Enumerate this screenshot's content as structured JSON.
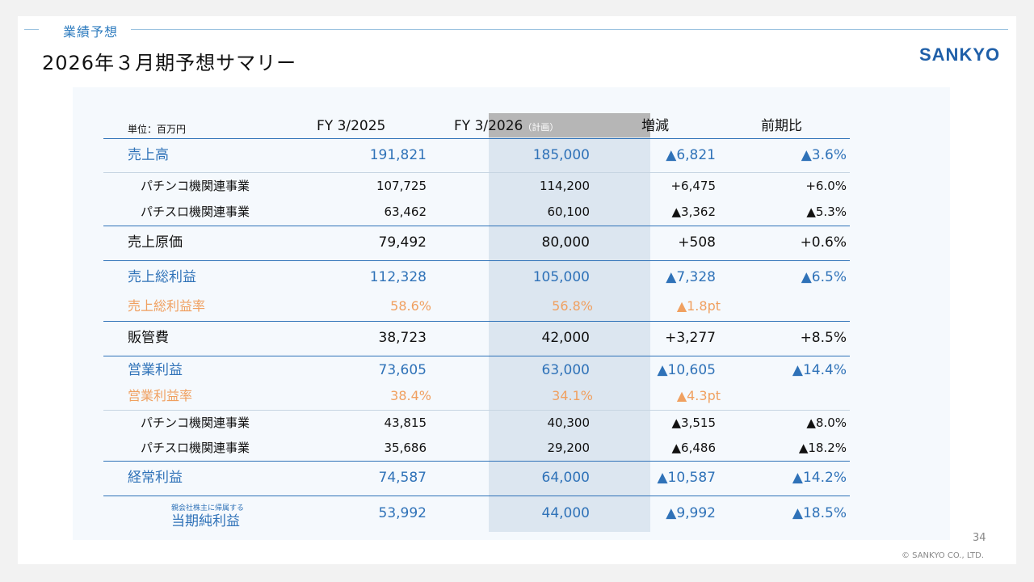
{
  "header": {
    "section_label": "業績予想",
    "title": "2026年３月期予想サマリー",
    "logo_text": "SANKYO"
  },
  "table": {
    "unit_label": "単位：百万円",
    "columns": {
      "fy2025": "FY 3/2025",
      "fy2026": "FY 3/2026",
      "fy2026_note": "（計画）",
      "change": "増減",
      "yoy": "前期比"
    },
    "rows": [
      {
        "label": "売上高",
        "fy2025": "191,821",
        "fy2026": "185,000",
        "change": "▲6,821",
        "yoy": "▲3.6%"
      },
      {
        "label": "パチンコ機関連事業",
        "fy2025": "107,725",
        "fy2026": "114,200",
        "change": "+6,475",
        "yoy": "+6.0%"
      },
      {
        "label": "パチスロ機関連事業",
        "fy2025": "63,462",
        "fy2026": "60,100",
        "change": "▲3,362",
        "yoy": "▲5.3%"
      },
      {
        "label": "売上原価",
        "fy2025": "79,492",
        "fy2026": "80,000",
        "change": "+508",
        "yoy": "+0.6%"
      },
      {
        "label": "売上総利益",
        "fy2025": "112,328",
        "fy2026": "105,000",
        "change": "▲7,328",
        "yoy": "▲6.5%"
      },
      {
        "label": "売上総利益率",
        "fy2025": "58.6%",
        "fy2026": "56.8%",
        "change": "▲1.8pt",
        "yoy": ""
      },
      {
        "label": "販管費",
        "fy2025": "38,723",
        "fy2026": "42,000",
        "change": "+3,277",
        "yoy": "+8.5%"
      },
      {
        "label": "営業利益",
        "fy2025": "73,605",
        "fy2026": "63,000",
        "change": "▲10,605",
        "yoy": "▲14.4%"
      },
      {
        "label": "営業利益率",
        "fy2025": "38.4%",
        "fy2026": "34.1%",
        "change": "▲4.3pt",
        "yoy": ""
      },
      {
        "label": "パチンコ機関連事業",
        "fy2025": "43,815",
        "fy2026": "40,300",
        "change": "▲3,515",
        "yoy": "▲8.0%"
      },
      {
        "label": "パチスロ機関連事業",
        "fy2025": "35,686",
        "fy2026": "29,200",
        "change": "▲6,486",
        "yoy": "▲18.2%"
      },
      {
        "label": "経常利益",
        "fy2025": "74,587",
        "fy2026": "64,000",
        "change": "▲10,587",
        "yoy": "▲14.2%"
      },
      {
        "label": "当期純利益",
        "label_note": "親会社株主に帰属する",
        "fy2025": "53,992",
        "fy2026": "44,000",
        "change": "▲9,992",
        "yoy": "▲18.5%"
      }
    ]
  },
  "footer": {
    "page_number": "34",
    "copyright": "© SANKYO CO., LTD."
  },
  "colors": {
    "accent_blue": "#2f72b8",
    "margin_orange": "#f0a060",
    "highlight_column": "#dce6f0",
    "header_gray": "#b6b6b6"
  }
}
